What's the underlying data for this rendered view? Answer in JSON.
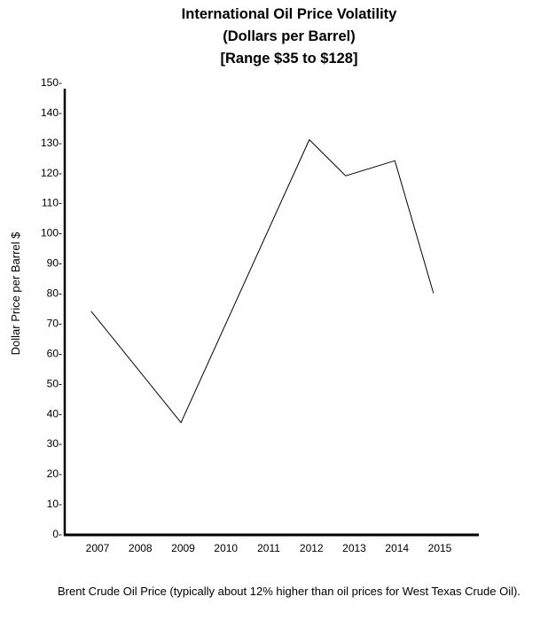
{
  "chart_data": {
    "type": "line",
    "title": "International Oil Price Volatility",
    "subtitle_lines": [
      "(Dollars per Barrel)",
      "[Range $35 to $128]"
    ],
    "xlabel": "",
    "ylabel": "Dollar Price per Barrel $",
    "x": [
      2007,
      2008,
      2009,
      2010,
      2011,
      2012,
      2013,
      2014,
      2015
    ],
    "x_tick_labels": [
      "2007",
      "2008",
      "2009",
      "2010",
      "2011",
      "2012",
      "2013",
      "2014",
      "2015"
    ],
    "y_tick_labels": [
      "0-",
      "10-",
      "20-",
      "30-",
      "40-",
      "50-",
      "60-",
      "70-",
      "80-",
      "90-",
      "100-",
      "110-",
      "120-",
      "130-",
      "140-",
      "150-"
    ],
    "y_ticks": [
      0,
      10,
      20,
      30,
      40,
      50,
      60,
      70,
      80,
      90,
      100,
      110,
      120,
      130,
      140,
      150
    ],
    "ylim": [
      0,
      150
    ],
    "grid": false,
    "series": [
      {
        "name": "Brent Crude Oil Price",
        "points": [
          {
            "x": 2006.85,
            "y": 74
          },
          {
            "x": 2008.95,
            "y": 37
          },
          {
            "x": 2011.95,
            "y": 131
          },
          {
            "x": 2012.8,
            "y": 119
          },
          {
            "x": 2013.95,
            "y": 124
          },
          {
            "x": 2014.85,
            "y": 80
          }
        ]
      }
    ]
  },
  "caption": "Brent Crude Oil Price (typically about 12% higher than oil prices for West Texas Crude Oil).",
  "colors": {
    "line": "#000000",
    "axis": "#000000",
    "background": "#ffffff"
  }
}
